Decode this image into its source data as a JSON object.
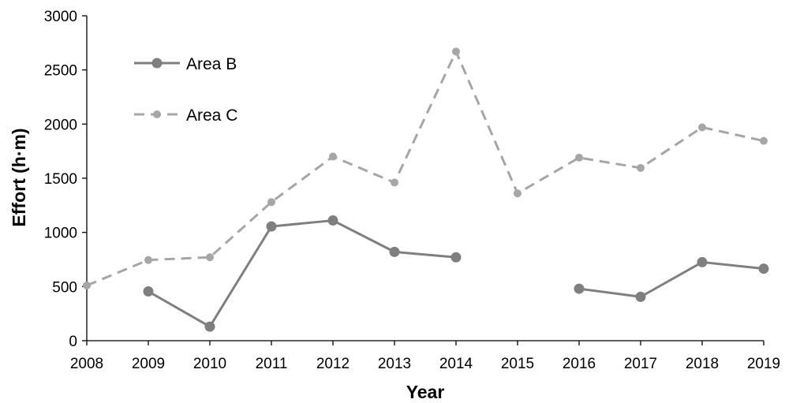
{
  "chart_data": {
    "type": "line",
    "title": "",
    "xlabel": "Year",
    "ylabel": "Effort (h·m)",
    "ylim": [
      0,
      3000
    ],
    "yticks": [
      "0",
      "500",
      "1000",
      "1500",
      "2000",
      "2500",
      "3000"
    ],
    "x": [
      "2008",
      "2009",
      "2010",
      "2011",
      "2012",
      "2013",
      "2014",
      "2015",
      "2016",
      "2017",
      "2018",
      "2019"
    ],
    "grid": false,
    "legend": "top-left",
    "series": [
      {
        "name": "Area B",
        "style": "solid",
        "color": "#7f7f7f",
        "values": [
          null,
          455,
          130,
          1055,
          1110,
          820,
          770,
          null,
          480,
          405,
          725,
          665
        ]
      },
      {
        "name": "Area C",
        "style": "dashed",
        "color": "#a6a6a6",
        "values": [
          510,
          745,
          770,
          1280,
          1700,
          1460,
          2670,
          1360,
          1690,
          1595,
          1970,
          1845
        ]
      }
    ]
  }
}
